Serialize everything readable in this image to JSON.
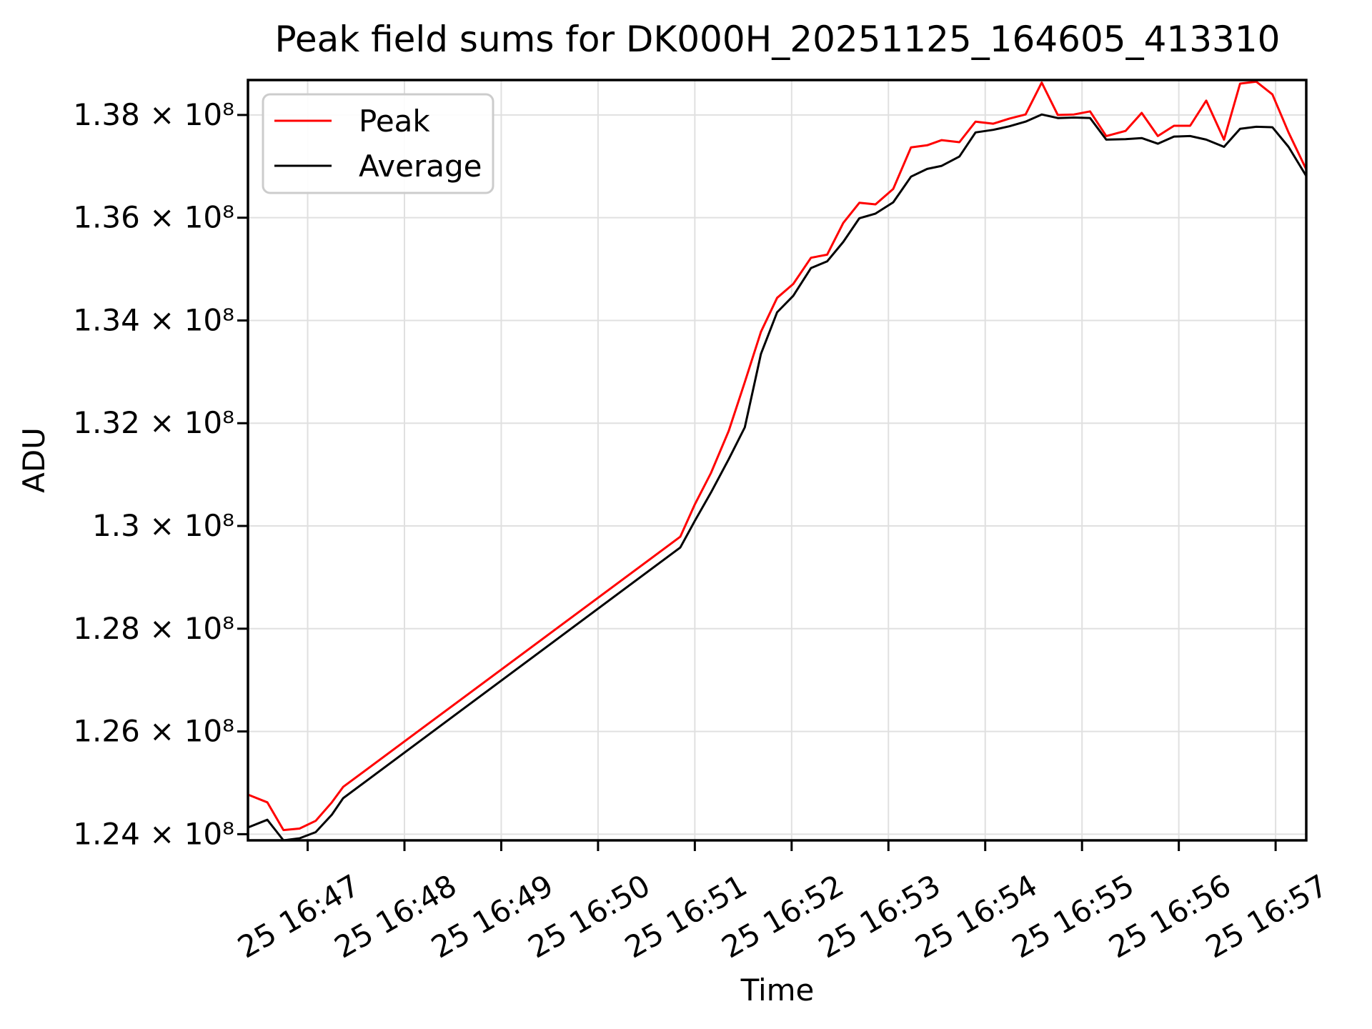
{
  "figure": {
    "background": "#ffffff"
  },
  "chart_data": {
    "type": "line",
    "title": "Peak field sums for DK000H_20251125_164605_413310",
    "xlabel": "Time",
    "ylabel": "ADU",
    "grid": true,
    "grid_color": "#e0e0e0",
    "spine_color": "#000000",
    "legend": {
      "position": "upper left",
      "entries": [
        "Peak",
        "Average"
      ],
      "border_color": "#cccccc"
    },
    "x_times": [
      "16:46:23",
      "16:46:35",
      "16:46:45",
      "16:46:55",
      "16:47:05",
      "16:47:15",
      "16:47:22",
      "16:50:51",
      "16:51:00",
      "16:51:10",
      "16:51:21",
      "16:51:31",
      "16:51:41",
      "16:51:51",
      "16:52:01",
      "16:52:12",
      "16:52:22",
      "16:52:32",
      "16:52:42",
      "16:52:52",
      "16:53:03",
      "16:53:14",
      "16:53:24",
      "16:53:33",
      "16:53:44",
      "16:53:54",
      "16:54:05",
      "16:54:15",
      "16:54:25",
      "16:54:35",
      "16:54:45",
      "16:54:55",
      "16:55:05",
      "16:55:15",
      "16:55:27",
      "16:55:37",
      "16:55:47",
      "16:55:57",
      "16:56:07",
      "16:56:17",
      "16:56:28",
      "16:56:38",
      "16:56:48",
      "16:56:58",
      "16:57:08",
      "16:57:19"
    ],
    "series": [
      {
        "name": "Peak",
        "color": "#ff0000",
        "values": [
          124770000,
          124620000,
          124080000,
          124110000,
          124260000,
          124620000,
          124920000,
          129790000,
          130420000,
          131030000,
          131850000,
          132800000,
          133780000,
          134440000,
          134710000,
          135220000,
          135280000,
          135900000,
          136290000,
          136260000,
          136560000,
          137370000,
          137410000,
          137510000,
          137470000,
          137870000,
          137830000,
          137930000,
          138010000,
          138630000,
          138000000,
          138010000,
          138070000,
          137590000,
          137690000,
          138040000,
          137590000,
          137790000,
          137790000,
          138280000,
          137520000,
          138610000,
          138650000,
          138400000,
          137660000,
          136940000
        ]
      },
      {
        "name": "Average",
        "color": "#000000",
        "values": [
          124130000,
          124280000,
          123880000,
          123920000,
          124040000,
          124380000,
          124700000,
          129580000,
          130100000,
          130650000,
          131300000,
          131920000,
          133350000,
          134160000,
          134480000,
          135020000,
          135150000,
          135530000,
          135990000,
          136080000,
          136300000,
          136800000,
          136950000,
          137010000,
          137190000,
          137660000,
          137710000,
          137780000,
          137870000,
          138010000,
          137940000,
          137950000,
          137940000,
          137520000,
          137530000,
          137550000,
          137440000,
          137580000,
          137590000,
          137520000,
          137380000,
          137730000,
          137770000,
          137760000,
          137380000,
          136810000
        ]
      }
    ],
    "x_ticks": [
      "25 16:47",
      "25 16:48",
      "25 16:49",
      "25 16:50",
      "25 16:51",
      "25 16:52",
      "25 16:53",
      "25 16:54",
      "25 16:55",
      "25 16:56",
      "25 16:57"
    ],
    "y_ticks": [
      {
        "value": 124000000,
        "label": "1.24 × 10⁸"
      },
      {
        "value": 126000000,
        "label": "1.26 × 10⁸"
      },
      {
        "value": 128000000,
        "label": "1.28 × 10⁸"
      },
      {
        "value": 130000000,
        "label": "1.3 × 10⁸"
      },
      {
        "value": 132000000,
        "label": "1.32 × 10⁸"
      },
      {
        "value": 134000000,
        "label": "1.34 × 10⁸"
      },
      {
        "value": 136000000,
        "label": "1.36 × 10⁸"
      },
      {
        "value": 138000000,
        "label": "1.38 × 10⁸"
      }
    ],
    "xlim": [
      "16:46:23",
      "16:57:19"
    ],
    "ylim": [
      123880000,
      138680000
    ]
  }
}
